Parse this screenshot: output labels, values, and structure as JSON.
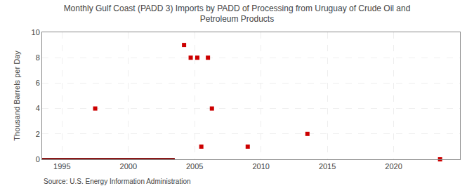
{
  "chart_data": {
    "type": "scatter",
    "title": "Monthly Gulf Coast (PADD 3) Imports by PADD of Processing from Uruguay of Crude Oil and\nPetroleum Products",
    "ylabel": "Thousand Barrels per Day",
    "annotations": [
      "Source: U.S. Energy Information Administration"
    ],
    "series": [
      {
        "type": "line",
        "color": "#8b1a1a",
        "line_style": "solid",
        "x": [
          1993.5,
          2003.5
        ],
        "values": [
          0,
          0
        ]
      },
      {
        "type": "scatter",
        "color": "#cc0000",
        "marker": "square",
        "x": [
          1997.5,
          2004.2,
          2004.7,
          2005.2,
          2005.5,
          2006.0,
          2006.3,
          2009.0,
          2013.5,
          2023.5
        ],
        "values": [
          4,
          9,
          8,
          8,
          1,
          8,
          4,
          1,
          2,
          0
        ]
      }
    ],
    "xlim": [
      1993.5,
      2025
    ],
    "ylim": [
      0,
      10
    ],
    "xticks": [
      1995,
      2000,
      2005,
      2010,
      2015,
      2020
    ],
    "yticks": [
      0,
      2,
      4,
      6,
      8,
      10
    ],
    "grid": true
  }
}
